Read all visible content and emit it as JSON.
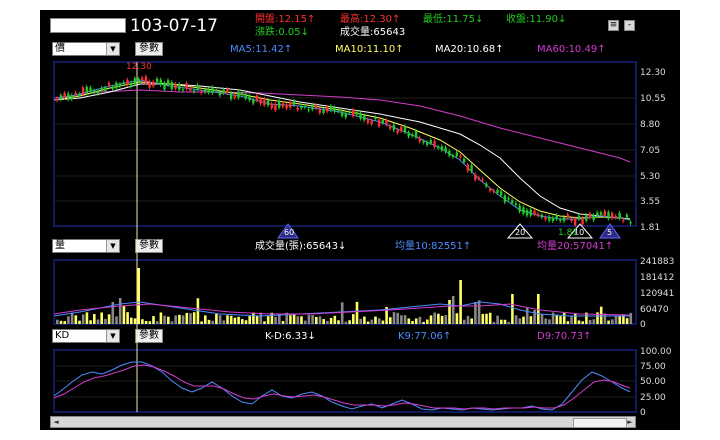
{
  "header": {
    "date": "103-07-17",
    "open": "開盤:12.15↑",
    "high": "最高:12.30↑",
    "low": "最低:11.75↓",
    "close": "收盤:11.90↓",
    "change": "漲跌:0.05↓",
    "volume": "成交量:65643",
    "minimize": "≡",
    "close_btn": "-"
  },
  "price_panel": {
    "select": "價",
    "param_btn": "參數",
    "ma5": "MA5:11.42↑",
    "ma10": "MA10:11.10↑",
    "ma20": "MA20:10.68↑",
    "ma60": "MA60:10.49↑",
    "max_label": "12.30",
    "y_ticks": [
      "12.30",
      "10.55",
      "8.80",
      "7.05",
      "5.30",
      "3.55",
      "1.81"
    ],
    "markers": [
      "60",
      "20",
      "10",
      "5"
    ],
    "min_label": "1.81"
  },
  "volume_panel": {
    "select": "量",
    "param_btn": "參數",
    "vol": "成交量(張):65643↓",
    "avg10": "均量10:82551↑",
    "avg20": "均量20:57041↑",
    "y_ticks": [
      "241883",
      "181412",
      "120941",
      "60470",
      "0"
    ]
  },
  "kd_panel": {
    "select": "KD",
    "param_btn": "參數",
    "kd": "K-D:6.33↓",
    "k9": "K9:77.06↑",
    "d9": "D9:70.73↑",
    "y_ticks": [
      "100.00",
      "75.00",
      "50.00",
      "25.00",
      "0"
    ]
  },
  "colors": {
    "rise": "#ff3030",
    "fall": "#22cc22",
    "ma5": "#4b8cff",
    "ma10": "#ffff66",
    "ma20": "#ffffff",
    "ma60": "#d23cd2",
    "k": "#4b8cff",
    "d": "#d23cd2",
    "vol_bar": "#ffff66",
    "vol_grey": "#888888"
  },
  "scrollbar": {
    "left": "◄",
    "right": "►"
  }
}
